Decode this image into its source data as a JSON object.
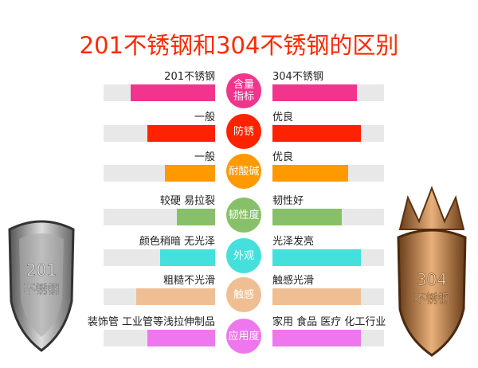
{
  "title": "201不锈钢和304不锈钢的区别",
  "rows": [
    {
      "category": "含量指标",
      "left_label": "201不锈钢",
      "right_label": "304不锈钢",
      "left_level": 0.76,
      "right_level": 0.76,
      "color": "#f2348d"
    },
    {
      "category": "防锈",
      "left_label": "一般",
      "right_label": "优良",
      "left_level": 0.61,
      "right_level": 0.79,
      "color": "#ff2200"
    },
    {
      "category": "耐酸碱",
      "left_label": "一般",
      "right_label": "优良",
      "left_level": 0.45,
      "right_level": 0.68,
      "color": "#ff9900"
    },
    {
      "category": "韧性度",
      "left_label": "较硬 易拉裂",
      "right_label": "韧性好",
      "left_level": 0.34,
      "right_level": 0.62,
      "color": "#88c06a"
    },
    {
      "category": "外观",
      "left_label": "颜色稍暗 无光泽",
      "right_label": "光泽发亮",
      "left_level": 0.49,
      "right_level": 0.79,
      "color": "#45e0dc"
    },
    {
      "category": "触感",
      "left_label": "粗糙不光滑",
      "right_label": "触感光滑",
      "left_level": 0.71,
      "right_level": 0.79,
      "color": "#efbf93"
    },
    {
      "category": "应用度",
      "left_label": "装饰管 工业管等浅拉伸制品",
      "right_label": "家用 食品 医疗 化工行业",
      "left_level": 0.61,
      "right_level": 0.79,
      "color": "#ee77ee"
    }
  ],
  "shields": {
    "left": {
      "number": "201",
      "text": "不锈钢"
    },
    "right": {
      "number": "304",
      "text": "不锈钢"
    }
  }
}
